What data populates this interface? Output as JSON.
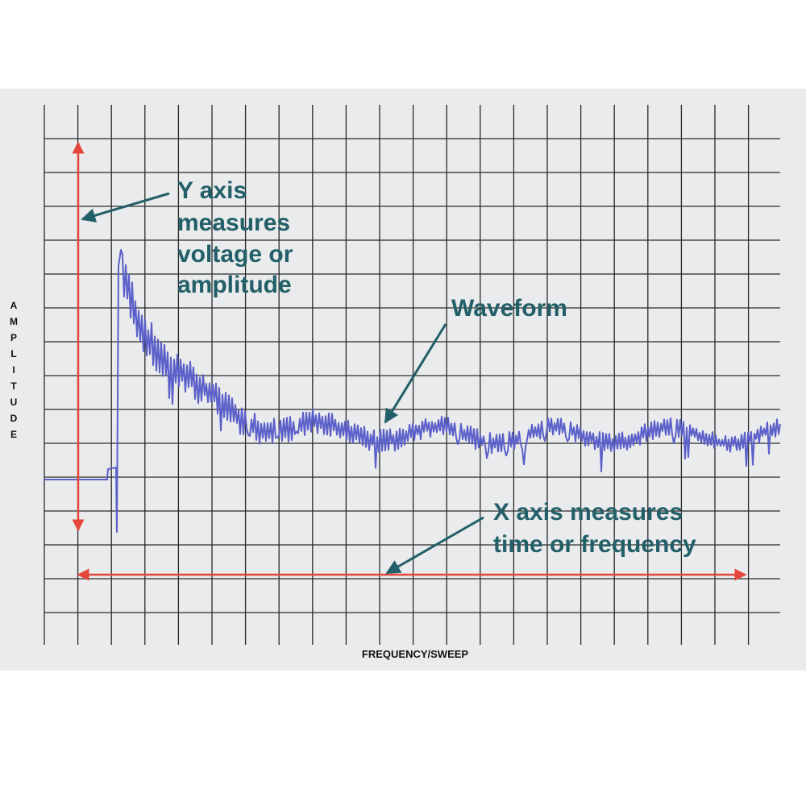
{
  "y_axis_note": {
    "lines": [
      "Y axis",
      "measures",
      "voltage or",
      "amplitude"
    ]
  },
  "waveform_note": "Waveform",
  "x_axis_note": {
    "lines": [
      "X axis measures",
      "time or frequency"
    ]
  },
  "y_axis_title": "AMPLITUDE",
  "x_axis_title": "FREQUENCY/SWEEP"
}
